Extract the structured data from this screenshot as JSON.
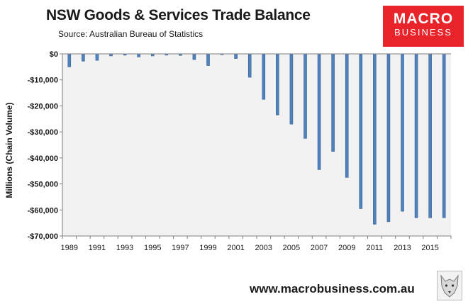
{
  "header": {
    "title": "NSW Goods & Services Trade Balance",
    "source": "Source:  Australian Bureau of Statistics"
  },
  "brand": {
    "line1": "MACRO",
    "line2": "BUSINESS",
    "color": "#e8232a"
  },
  "footer": {
    "url": "www.macrobusiness.com.au"
  },
  "chart_data": {
    "type": "bar",
    "title": "NSW Goods & Services Trade Balance",
    "xlabel": "",
    "ylabel": "Millions (Chain Volume)",
    "ylim": [
      -70000,
      0
    ],
    "yticks": [
      0,
      -10000,
      -20000,
      -30000,
      -40000,
      -50000,
      -60000,
      -70000
    ],
    "ytick_labels": [
      "$0",
      "-$10,000",
      "-$20,000",
      "-$30,000",
      "-$40,000",
      "-$50,000",
      "-$60,000",
      "-$70,000"
    ],
    "xtick_labels": [
      "1989",
      "1991",
      "1993",
      "1995",
      "1997",
      "1999",
      "2001",
      "2003",
      "2005",
      "2007",
      "2009",
      "2011",
      "2013",
      "2015"
    ],
    "categories": [
      "1989",
      "1990",
      "1991",
      "1992",
      "1993",
      "1994",
      "1995",
      "1996",
      "1997",
      "1998",
      "1999",
      "2000",
      "2001",
      "2002",
      "2003",
      "2004",
      "2005",
      "2006",
      "2007",
      "2008",
      "2009",
      "2010",
      "2011",
      "2012",
      "2013",
      "2014",
      "2015",
      "2016"
    ],
    "values": [
      -5000,
      -2800,
      -2500,
      -800,
      -500,
      -1200,
      -800,
      -500,
      -600,
      -2200,
      -4500,
      -300,
      -1800,
      -9000,
      -17500,
      -23500,
      -27000,
      -32500,
      -44500,
      -37500,
      -47500,
      -59500,
      -65500,
      -64500,
      -60500,
      -63000,
      -63000,
      -63000
    ],
    "bar_color": "#4f81bd",
    "plot_background": "#f2f2f2",
    "grid": false,
    "legend": "none"
  }
}
